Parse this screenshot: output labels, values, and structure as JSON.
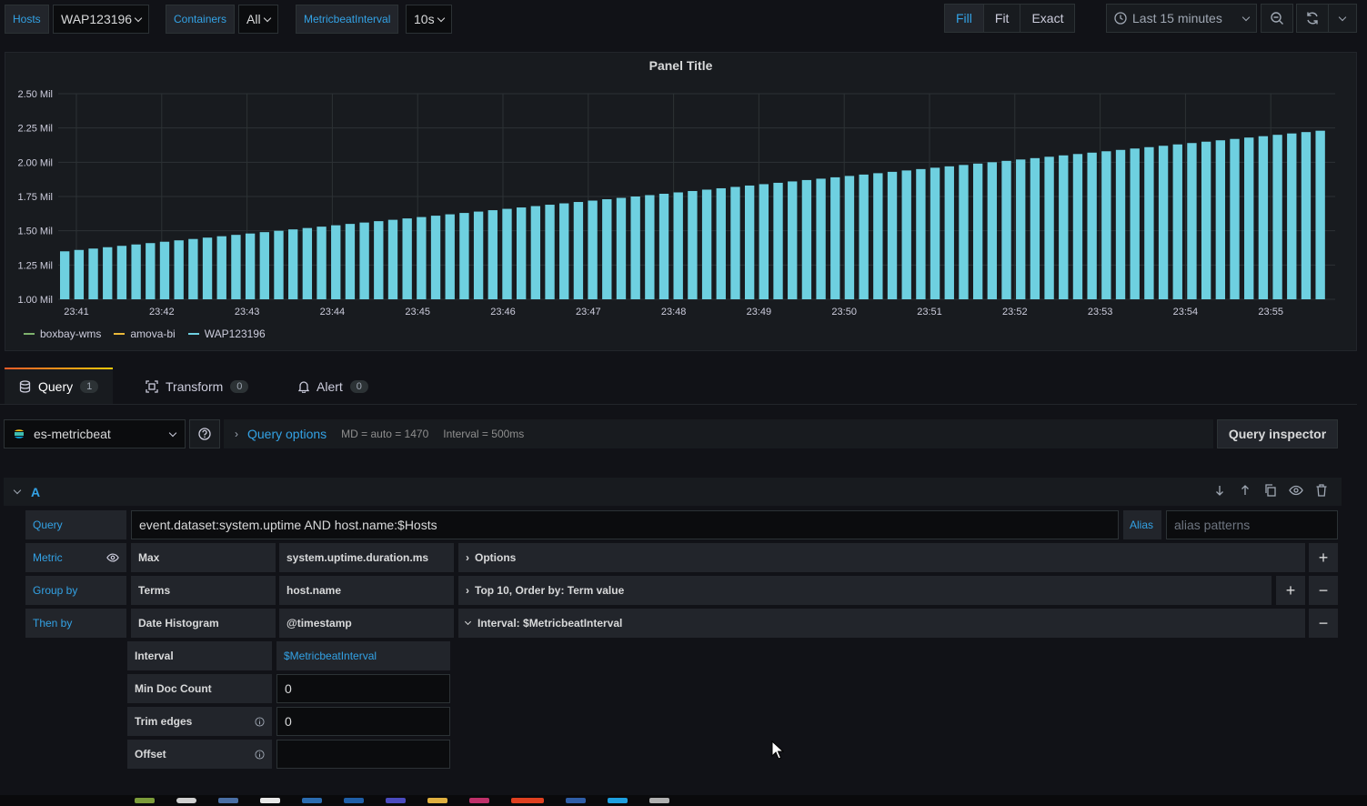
{
  "variables": {
    "hosts": {
      "label": "Hosts",
      "value": "WAP123196"
    },
    "containers": {
      "label": "Containers",
      "value": "All"
    },
    "interval": {
      "label": "MetricbeatInterval",
      "value": "10s"
    }
  },
  "toolbar": {
    "fill": "Fill",
    "fit": "Fit",
    "exact": "Exact",
    "time_range": "Last 15 minutes"
  },
  "panel": {
    "title": "Panel Title"
  },
  "chart_data": {
    "type": "bar",
    "title": "Panel Title",
    "xlabel": "",
    "ylabel": "",
    "x_ticks": [
      "23:41",
      "23:42",
      "23:43",
      "23:44",
      "23:45",
      "23:46",
      "23:47",
      "23:48",
      "23:49",
      "23:50",
      "23:51",
      "23:52",
      "23:53",
      "23:54",
      "23:55"
    ],
    "y_ticks": [
      "1.00 Mil",
      "1.25 Mil",
      "1.50 Mil",
      "1.75 Mil",
      "2.00 Mil",
      "2.25 Mil",
      "2.50 Mil"
    ],
    "ylim": [
      1.0,
      2.5
    ],
    "y_unit": "Mil",
    "series": [
      {
        "name": "WAP123196",
        "color": "#6ed0e0",
        "values": [
          1.35,
          1.36,
          1.37,
          1.38,
          1.39,
          1.4,
          1.41,
          1.42,
          1.43,
          1.44,
          1.45,
          1.46,
          1.47,
          1.48,
          1.49,
          1.5,
          1.51,
          1.52,
          1.53,
          1.54,
          1.55,
          1.56,
          1.57,
          1.58,
          1.59,
          1.6,
          1.61,
          1.62,
          1.63,
          1.64,
          1.65,
          1.66,
          1.67,
          1.68,
          1.69,
          1.7,
          1.71,
          1.72,
          1.73,
          1.74,
          1.75,
          1.76,
          1.77,
          1.78,
          1.79,
          1.8,
          1.81,
          1.82,
          1.83,
          1.84,
          1.85,
          1.86,
          1.87,
          1.88,
          1.89,
          1.9,
          1.91,
          1.92,
          1.93,
          1.94,
          1.95,
          1.96,
          1.97,
          1.98,
          1.99,
          2.0,
          2.01,
          2.02,
          2.03,
          2.04,
          2.05,
          2.06,
          2.07,
          2.08,
          2.09,
          2.1,
          2.11,
          2.12,
          2.13,
          2.14,
          2.15,
          2.16,
          2.17,
          2.18,
          2.19,
          2.2,
          2.21,
          2.22,
          2.23
        ]
      }
    ],
    "legend": [
      {
        "name": "boxbay-wms",
        "color": "#7eb26d"
      },
      {
        "name": "amova-bi",
        "color": "#eab839"
      },
      {
        "name": "WAP123196",
        "color": "#6ed0e0"
      }
    ],
    "legend_position": "bottom-left",
    "grid": true
  },
  "tabs": [
    {
      "label": "Query",
      "count": "1"
    },
    {
      "label": "Transform",
      "count": "0"
    },
    {
      "label": "Alert",
      "count": "0"
    }
  ],
  "datasource": {
    "name": "es-metricbeat",
    "query_options": "Query options",
    "md": "MD = auto = 1470",
    "interval": "Interval = 500ms",
    "inspector": "Query inspector"
  },
  "query": {
    "ref": "A",
    "query_label": "Query",
    "query_text": "event.dataset:system.uptime AND host.name:$Hosts",
    "alias_label": "Alias",
    "alias_placeholder": "alias patterns",
    "metric_label": "Metric",
    "metric_agg": "Max",
    "metric_field": "system.uptime.duration.ms",
    "metric_options": "Options",
    "groupby_label": "Group by",
    "groupby_agg": "Terms",
    "groupby_field": "host.name",
    "groupby_options": "Top 10, Order by: Term value",
    "thenby_label": "Then by",
    "thenby_agg": "Date Histogram",
    "thenby_field": "@timestamp",
    "thenby_options": "Interval: $MetricbeatInterval",
    "interval_label": "Interval",
    "interval_value": "$MetricbeatInterval",
    "min_doc_label": "Min Doc Count",
    "min_doc_value": "0",
    "trim_label": "Trim edges",
    "trim_value": "0",
    "offset_label": "Offset",
    "offset_value": ""
  }
}
